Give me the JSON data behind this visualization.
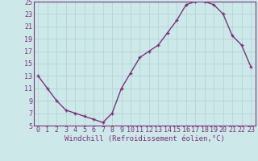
{
  "x": [
    0,
    1,
    2,
    3,
    4,
    5,
    6,
    7,
    8,
    9,
    10,
    11,
    12,
    13,
    14,
    15,
    16,
    17,
    18,
    19,
    20,
    21,
    22,
    23
  ],
  "y": [
    13,
    11,
    9,
    7.5,
    7,
    6.5,
    6,
    5.5,
    7,
    11,
    13.5,
    16,
    17,
    18,
    20,
    22,
    24.5,
    25,
    25,
    24.5,
    23,
    19.5,
    18,
    14.5
  ],
  "line_color": "#7B337B",
  "marker": "+",
  "marker_color": "#7B337B",
  "bg_color": "#cce8e8",
  "grid_color": "#b8d8d8",
  "xlabel": "Windchill (Refroidissement éolien,°C)",
  "xlabel_color": "#7B337B",
  "tick_color": "#7B337B",
  "spine_color": "#7B337B",
  "ylim": [
    5,
    25
  ],
  "xlim": [
    -0.5,
    23.5
  ],
  "yticks": [
    5,
    7,
    9,
    11,
    13,
    15,
    17,
    19,
    21,
    23,
    25
  ],
  "xticks": [
    0,
    1,
    2,
    3,
    4,
    5,
    6,
    7,
    8,
    9,
    10,
    11,
    12,
    13,
    14,
    15,
    16,
    17,
    18,
    19,
    20,
    21,
    22,
    23
  ],
  "xlabel_fontsize": 6.5,
  "tick_fontsize": 6.0,
  "linewidth": 1.0,
  "markersize": 3.5
}
